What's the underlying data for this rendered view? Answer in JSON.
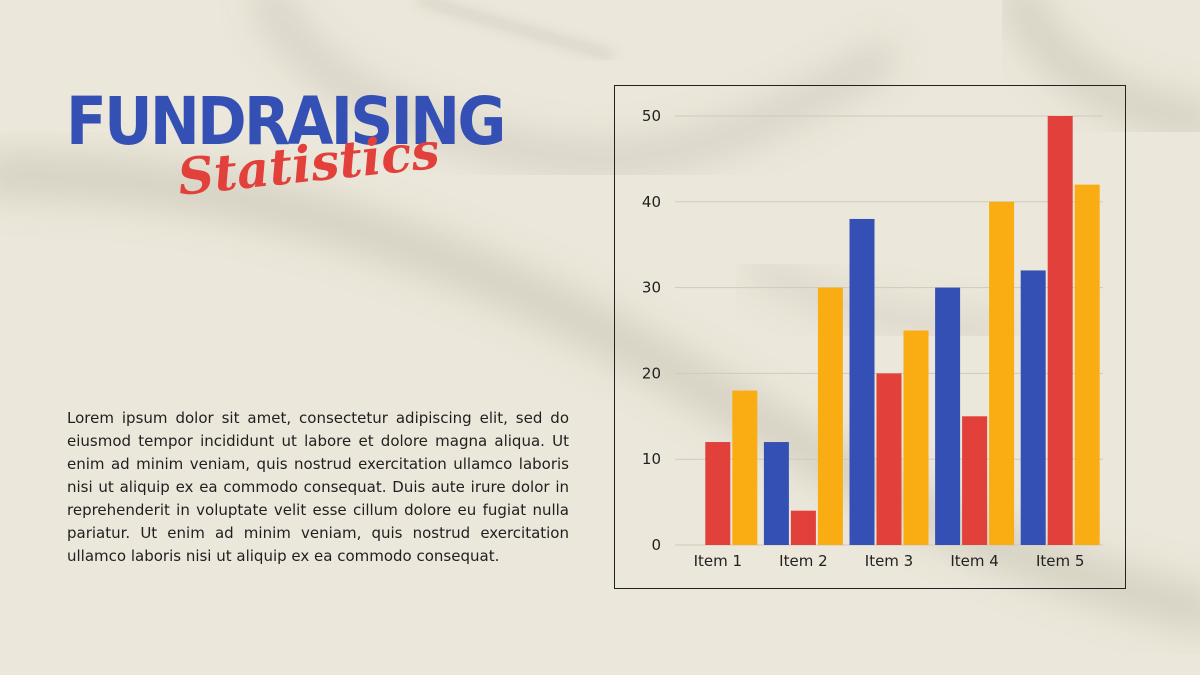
{
  "title": "FUNDRAISING",
  "subtitle": "Statistics",
  "body": "Lorem ipsum dolor sit amet, consectetur adipiscing elit, sed do eiusmod tempor incididunt ut labore et dolore magna aliqua. Ut enim ad minim veniam, quis nostrud exercitation ullamco laboris nisi ut aliquip ex ea commodo consequat. Duis aute irure dolor in reprehenderit in voluptate velit esse cillum dolore eu fugiat nulla pariatur. Ut enim ad minim veniam, quis nostrud exercitation ullamco laboris nisi ut aliquip ex ea commodo consequat.",
  "chart_data": {
    "type": "bar",
    "categories": [
      "Item 1",
      "Item 2",
      "Item 3",
      "Item 4",
      "Item 5"
    ],
    "series": [
      {
        "values": [
          0,
          12,
          38,
          30,
          32
        ],
        "color": "#3550b4"
      },
      {
        "values": [
          12,
          4,
          20,
          15,
          50
        ],
        "color": "#e2403b"
      },
      {
        "values": [
          18,
          30,
          25,
          40,
          42
        ],
        "color": "#f9ad13"
      }
    ],
    "yticks": [
      0,
      10,
      20,
      30,
      40,
      50
    ],
    "ylim": [
      0,
      50
    ],
    "grid": true,
    "legend": "none"
  }
}
